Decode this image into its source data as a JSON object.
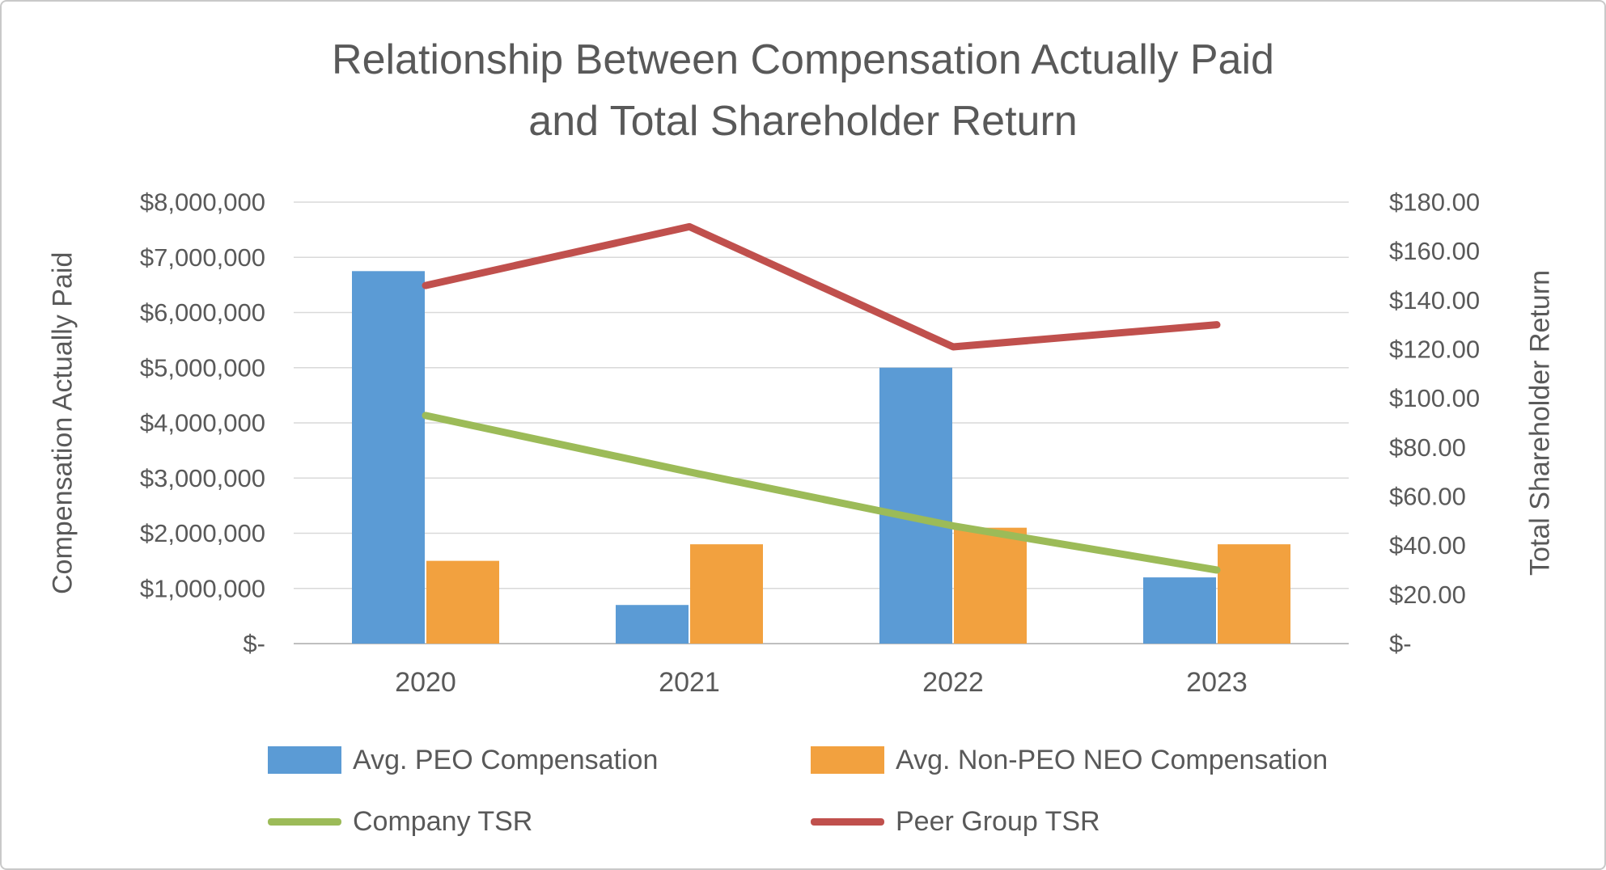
{
  "title": {
    "line1": "Relationship Between Compensation Actually Paid",
    "line2": "and Total Shareholder Return"
  },
  "chart_data": {
    "type": "combo",
    "categories": [
      "2020",
      "2021",
      "2022",
      "2023"
    ],
    "series": [
      {
        "name": "Avg. PEO Compensation",
        "type": "bar",
        "axis": "left",
        "color": "#5B9BD5",
        "values": [
          6750000,
          700000,
          5000000,
          1200000
        ]
      },
      {
        "name": "Avg. Non-PEO NEO Compensation",
        "type": "bar",
        "axis": "left",
        "color": "#F2A13F",
        "values": [
          1500000,
          1800000,
          2100000,
          1800000
        ]
      },
      {
        "name": "Company TSR",
        "type": "line",
        "axis": "right",
        "color": "#9CBB58",
        "values": [
          93,
          70,
          48,
          30
        ]
      },
      {
        "name": "Peer Group TSR",
        "type": "line",
        "axis": "right",
        "color": "#C0504D",
        "values": [
          146,
          170,
          121,
          130
        ]
      }
    ],
    "left_axis": {
      "title": "Compensation Actually Paid",
      "min": 0,
      "max": 8000000,
      "step": 1000000,
      "tick_labels_top_to_bottom": [
        "$8,000,000",
        "$7,000,000",
        "$6,000,000",
        "$5,000,000",
        "$4,000,000",
        "$3,000,000",
        "$2,000,000",
        "$1,000,000",
        "$-"
      ]
    },
    "right_axis": {
      "title": "Total Shareholder Return",
      "min": 0,
      "max": 180,
      "step": 20,
      "tick_labels_top_to_bottom": [
        "$180.00",
        "$160.00",
        "$140.00",
        "$120.00",
        "$100.00",
        "$80.00",
        "$60.00",
        "$40.00",
        "$20.00",
        "$-"
      ]
    },
    "grid": true,
    "legend_position": "bottom",
    "colors": {
      "gridline": "#D9D9D9",
      "axis_line": "#BFBFBF",
      "text": "#595959"
    }
  }
}
